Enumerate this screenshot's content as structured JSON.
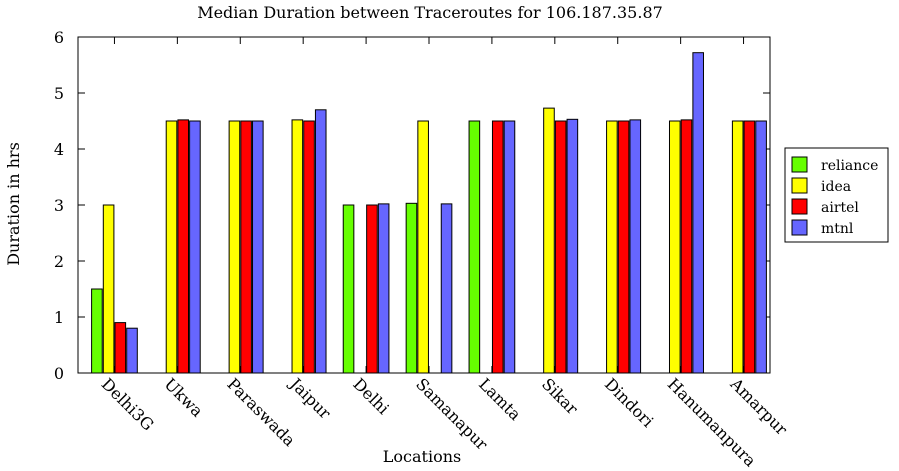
{
  "chart_data": {
    "type": "bar",
    "title": "Median Duration between Traceroutes for 106.187.35.87",
    "xlabel": "Locations",
    "ylabel": "Duration in hrs",
    "ylim": [
      0,
      6
    ],
    "yticks": [
      0,
      1,
      2,
      3,
      4,
      5,
      6
    ],
    "legend_position": "right",
    "categories": [
      "Delhi3G",
      "Ukwa",
      "Paraswada",
      "Jaipur",
      "Delhi",
      "Samanapur",
      "Lamta",
      "Sikar",
      "Dindori",
      "Hanumanpura",
      "Amarpur"
    ],
    "series": [
      {
        "name": "reliance",
        "color": "#66ff00",
        "values": [
          1.5,
          null,
          null,
          null,
          3.0,
          3.03,
          4.5,
          null,
          null,
          null,
          null
        ]
      },
      {
        "name": "idea",
        "color": "#ffff00",
        "values": [
          3.0,
          4.5,
          4.5,
          4.52,
          null,
          4.5,
          null,
          4.73,
          4.5,
          4.5,
          4.5
        ]
      },
      {
        "name": "airtel",
        "color": "#ff0000",
        "values": [
          0.9,
          4.52,
          4.5,
          4.5,
          3.0,
          null,
          4.5,
          4.5,
          4.5,
          4.52,
          4.5
        ]
      },
      {
        "name": "mtnl",
        "color": "#6666ff",
        "values": [
          0.8,
          4.5,
          4.5,
          4.7,
          3.02,
          3.02,
          4.5,
          4.53,
          4.52,
          5.72,
          4.5
        ]
      }
    ]
  }
}
